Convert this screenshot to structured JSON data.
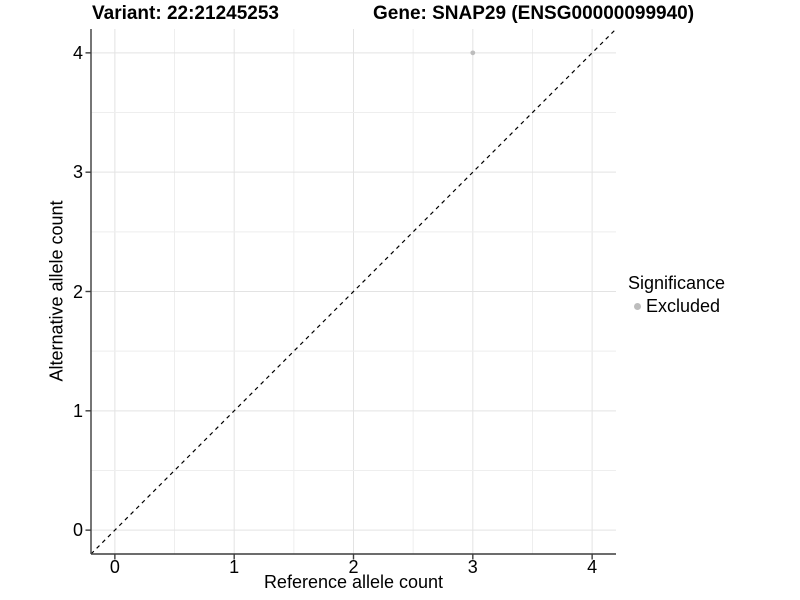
{
  "titles": {
    "variant": "Variant: 22:21245253",
    "gene": "Gene: SNAP29 (ENSG00000099940)"
  },
  "chart_data": {
    "type": "scatter",
    "xlabel": "Reference allele count",
    "ylabel": "Alternative allele count",
    "xlim": [
      -0.2,
      4.2
    ],
    "ylim": [
      -0.2,
      4.2
    ],
    "xticks": [
      0,
      1,
      2,
      3,
      4
    ],
    "yticks": [
      0,
      1,
      2,
      3,
      4
    ],
    "grid": {
      "on": true,
      "minor_every": 0.5,
      "major_color": "#e3e3e3",
      "minor_color": "#eeeeee"
    },
    "axis": {
      "color": "#3c3c3c",
      "width": 1.4,
      "tick_length": 5.5
    },
    "reference_line": {
      "type": "abline",
      "slope": 1,
      "intercept": 0,
      "style": "dashed",
      "color": "#000000"
    },
    "series": [
      {
        "name": "Excluded",
        "color": "#bdbdbd",
        "point_radius": 2.4,
        "points": [
          {
            "x": 3,
            "y": 4
          }
        ]
      }
    ],
    "legend": {
      "position": "right",
      "title": "Significance",
      "entries": [
        {
          "label": "Excluded",
          "color": "#bdbdbd"
        }
      ]
    }
  }
}
